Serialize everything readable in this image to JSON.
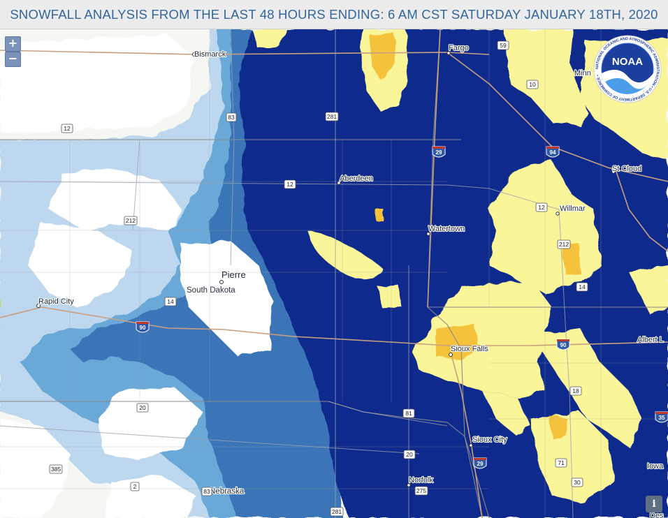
{
  "header": {
    "title": "SNOWFALL ANALYSIS FROM THE LAST 48 HOURS ENDING: 6 AM CST SATURDAY JANUARY 18TH, 2020"
  },
  "controls": {
    "zoom_in_label": "+",
    "zoom_out_label": "−",
    "info_label": "i"
  },
  "logo": {
    "name": "NOAA",
    "ring_text": "NATIONAL OCEANIC AND ATMOSPHERIC ADMINISTRATION • U.S. DEPARTMENT OF COMMERCE •"
  },
  "colors": {
    "snow_none": "#ffffff",
    "snow_trace": "#bdd7ee",
    "snow_light": "#6aa8d8",
    "snow_moderate": "#3a74b8",
    "snow_heavy": "#0d2a8c",
    "snow_very_heavy": "#fbf59a",
    "snow_extreme": "#f5c33a",
    "road": "#c8a080",
    "state_line": "#8a8a8a"
  },
  "cities": [
    {
      "id": "bismarck",
      "label": "Bismarck"
    },
    {
      "id": "fargo",
      "label": "Fargo"
    },
    {
      "id": "minneapolis",
      "label": "Minn"
    },
    {
      "id": "stcloud",
      "label": "St Cloud"
    },
    {
      "id": "aberdeen",
      "label": "Aberdeen"
    },
    {
      "id": "willmar",
      "label": "Willmar"
    },
    {
      "id": "watertown",
      "label": "Watertown"
    },
    {
      "id": "pierre",
      "label": "Pierre"
    },
    {
      "id": "rapidcity",
      "label": "Rapid City"
    },
    {
      "id": "siouxfalls",
      "label": "Sioux Falls"
    },
    {
      "id": "albertlea",
      "label": "Albert L"
    },
    {
      "id": "siouxcity",
      "label": "Sioux City"
    },
    {
      "id": "norfolk",
      "label": "Norfolk"
    },
    {
      "id": "iowa",
      "label": "Iowa"
    },
    {
      "id": "desmoines",
      "label": "Des"
    }
  ],
  "states": [
    {
      "id": "sd",
      "label": "South Dakota"
    },
    {
      "id": "ne",
      "label": "Nebraska"
    }
  ],
  "us_shields": [
    "83",
    "281",
    "12",
    "12",
    "212",
    "14",
    "14",
    "20",
    "385",
    "2",
    "83",
    "281",
    "275",
    "20",
    "81",
    "71",
    "30",
    "18",
    "212",
    "12",
    "59",
    "10",
    "14"
  ],
  "interstate_shields": [
    "29",
    "94",
    "90",
    "90",
    "29",
    "35"
  ]
}
